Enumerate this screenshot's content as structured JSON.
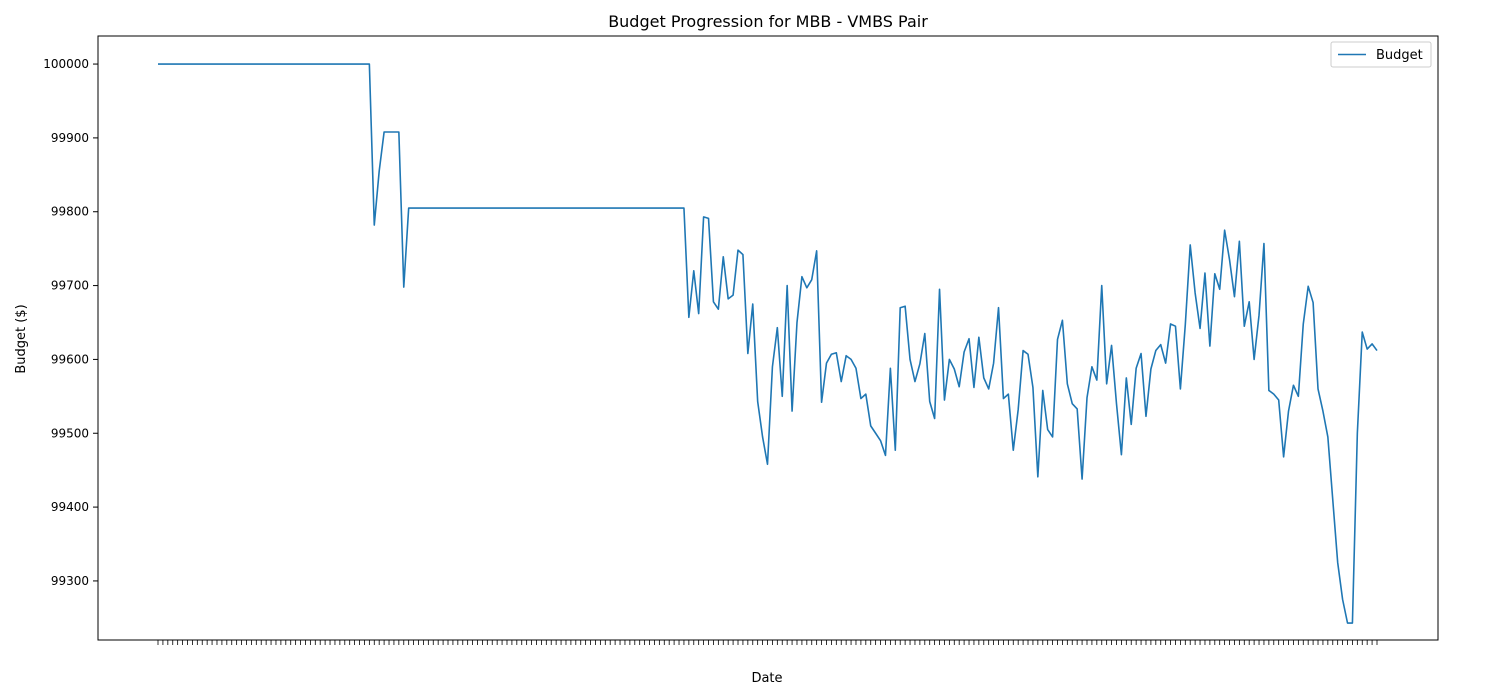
{
  "chart_data": {
    "type": "line",
    "title": "Budget Progression for MBB - VMBS Pair",
    "xlabel": "Date",
    "ylabel": "Budget ($)",
    "ylim": [
      99220,
      100038
    ],
    "yticks": [
      99300,
      99400,
      99500,
      99600,
      99700,
      99800,
      99900,
      100000
    ],
    "grid": false,
    "legend_position": "top-right",
    "series": [
      {
        "name": "Budget",
        "color": "#1f77b4",
        "values": [
          100000,
          100000,
          100000,
          100000,
          100000,
          100000,
          100000,
          100000,
          100000,
          100000,
          100000,
          100000,
          100000,
          100000,
          100000,
          100000,
          100000,
          100000,
          100000,
          100000,
          100000,
          100000,
          100000,
          100000,
          100000,
          100000,
          100000,
          100000,
          100000,
          100000,
          100000,
          100000,
          100000,
          100000,
          100000,
          100000,
          100000,
          100000,
          100000,
          100000,
          100000,
          100000,
          100000,
          100000,
          99782,
          99855,
          99908,
          99908,
          99908,
          99908,
          99698,
          99805,
          99805,
          99805,
          99805,
          99805,
          99805,
          99805,
          99805,
          99805,
          99805,
          99805,
          99805,
          99805,
          99805,
          99805,
          99805,
          99805,
          99805,
          99805,
          99805,
          99805,
          99805,
          99805,
          99805,
          99805,
          99805,
          99805,
          99805,
          99805,
          99805,
          99805,
          99805,
          99805,
          99805,
          99805,
          99805,
          99805,
          99805,
          99805,
          99805,
          99805,
          99805,
          99805,
          99805,
          99805,
          99805,
          99805,
          99805,
          99805,
          99805,
          99805,
          99805,
          99805,
          99805,
          99805,
          99805,
          99805,
          99657,
          99720,
          99662,
          99793,
          99791,
          99678,
          99668,
          99739,
          99682,
          99687,
          99748,
          99742,
          99608,
          99675,
          99543,
          99495,
          99458,
          99590,
          99643,
          99550,
          99700,
          99530,
          99650,
          99712,
          99697,
          99708,
          99747,
          99542,
          99595,
          99607,
          99609,
          99570,
          99605,
          99600,
          99588,
          99547,
          99553,
          99510,
          99500,
          99490,
          99470,
          99588,
          99477,
          99670,
          99672,
          99600,
          99570,
          99594,
          99635,
          99543,
          99520,
          99695,
          99545,
          99600,
          99587,
          99563,
          99610,
          99628,
          99562,
          99630,
          99575,
          99560,
          99595,
          99670,
          99547,
          99553,
          99477,
          99532,
          99612,
          99607,
          99562,
          99441,
          99558,
          99505,
          99495,
          99627,
          99653,
          99567,
          99540,
          99533,
          99438,
          99548,
          99590,
          99572,
          99700,
          99567,
          99619,
          99540,
          99471,
          99575,
          99512,
          99588,
          99608,
          99523,
          99587,
          99612,
          99620,
          99595,
          99648,
          99645,
          99560,
          99647,
          99755,
          99690,
          99642,
          99717,
          99618,
          99716,
          99695,
          99775,
          99735,
          99685,
          99760,
          99645,
          99678,
          99600,
          99660,
          99757,
          99558,
          99553,
          99545,
          99468,
          99530,
          99565,
          99550,
          99648,
          99699,
          99677,
          99560,
          99530,
          99495,
          99410,
          99325,
          99275,
          99243,
          99243,
          99500,
          99637,
          99614,
          99621,
          99612
        ]
      }
    ]
  }
}
